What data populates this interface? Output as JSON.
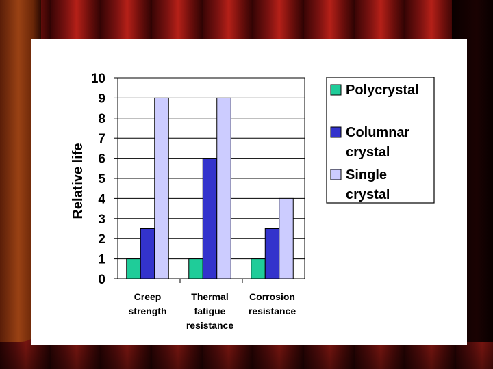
{
  "chart_data": {
    "type": "bar",
    "categories": [
      [
        "Creep",
        "strength"
      ],
      [
        "Thermal",
        "fatigue",
        "resistance"
      ],
      [
        "Corrosion",
        "resistance"
      ]
    ],
    "series": [
      {
        "name": [
          "Polycrystal"
        ],
        "values": [
          1,
          1,
          1
        ],
        "color": "#1fcc99"
      },
      {
        "name": [
          "Columnar",
          "crystal"
        ],
        "values": [
          2.5,
          6,
          2.5
        ],
        "color": "#3333cc"
      },
      {
        "name": [
          "Single",
          "crystal"
        ],
        "values": [
          9,
          9,
          4
        ],
        "color": "#ccccff"
      }
    ],
    "ylabel": "Relative life",
    "ylim": [
      0,
      10
    ],
    "yticks": [
      0,
      1,
      2,
      3,
      4,
      5,
      6,
      7,
      8,
      9,
      10
    ],
    "grid": true,
    "legend": "right"
  }
}
